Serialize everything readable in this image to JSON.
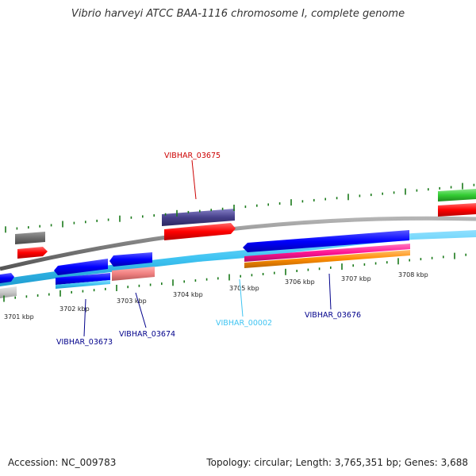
{
  "title": "Vibrio harveyi ATCC BAA-1116 chromosome I, complete genome",
  "footer": {
    "accession": "Accession: NC_009783",
    "summary": "Topology: circular; Length: 3,765,351 bp; Genes: 3,688"
  },
  "colors": {
    "backbone": "#7f7f7f",
    "tick": "#1a7a1a",
    "forward_track": "#0000ff",
    "light_track": "#3fc4f2",
    "red_cds": "#ff0000",
    "dark_violet_cds": "#46408a",
    "pink_cds": "#f08080",
    "magenta_cds": "#ff1493",
    "orange_cds": "#ff8c00",
    "green_cds": "#33cc33",
    "gray_cds": "#6e6e6e",
    "light_gray_cds": "#c8c8c8"
  },
  "scale_labels": [
    {
      "text": "3701 kbp"
    },
    {
      "text": "3702 kbp"
    },
    {
      "text": "3703 kbp"
    },
    {
      "text": "3704 kbp"
    },
    {
      "text": "3705 kbp"
    },
    {
      "text": "3706 kbp"
    },
    {
      "text": "3707 kbp"
    },
    {
      "text": "3708 kbp"
    }
  ],
  "gene_labels": [
    {
      "text": "VIBHAR_03675",
      "color": "#cc0000"
    },
    {
      "text": "VIBHAR_03673",
      "color": "#00008b"
    },
    {
      "text": "VIBHAR_03674",
      "color": "#00008b"
    },
    {
      "text": "VIBHAR_00002",
      "color": "#3fc4f2"
    },
    {
      "text": "VIBHAR_03676",
      "color": "#00008b"
    }
  ]
}
